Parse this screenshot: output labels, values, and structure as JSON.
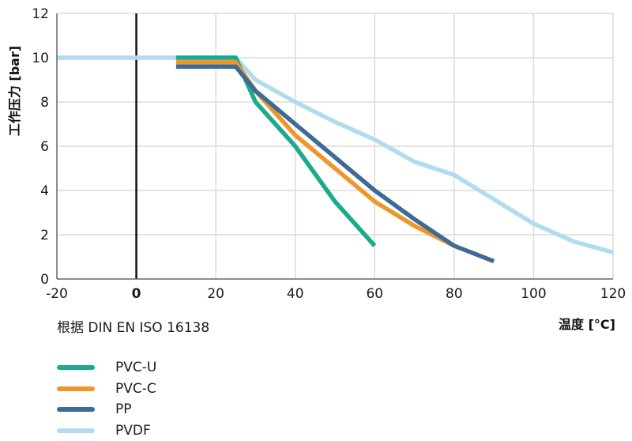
{
  "chart_data": {
    "type": "line",
    "xlabel": "温度 [°C]",
    "ylabel": "工作压力 [bar]",
    "xlim": [
      -20,
      120
    ],
    "ylim": [
      0,
      12
    ],
    "xticks": [
      -20,
      0,
      20,
      40,
      60,
      80,
      100,
      120
    ],
    "yticks": [
      0,
      2,
      4,
      6,
      8,
      10,
      12
    ],
    "grid": true,
    "note": "根据 DIN EN ISO 16138",
    "legend_position": "bottom-left",
    "series": [
      {
        "name": "PVC-U",
        "color": "#1aaa8c",
        "x": [
          10,
          25,
          30,
          40,
          50,
          60
        ],
        "y": [
          10,
          10,
          8,
          6,
          3.5,
          1.5
        ]
      },
      {
        "name": "PVC-C",
        "color": "#f0952a",
        "x": [
          10,
          25,
          30,
          40,
          50,
          60,
          70,
          80
        ],
        "y": [
          9.8,
          9.8,
          8.5,
          6.5,
          5,
          3.5,
          2.4,
          1.5
        ]
      },
      {
        "name": "PP",
        "color": "#3d6b96",
        "x": [
          10,
          25,
          30,
          40,
          50,
          60,
          70,
          80,
          90
        ],
        "y": [
          9.6,
          9.6,
          8.5,
          7,
          5.5,
          4,
          2.7,
          1.5,
          0.8
        ]
      },
      {
        "name": "PVDF",
        "color": "#b2dcee",
        "x": [
          -20,
          25,
          30,
          40,
          50,
          60,
          70,
          80,
          90,
          100,
          110,
          120
        ],
        "y": [
          10,
          10,
          9,
          8,
          7.1,
          6.3,
          5.3,
          4.7,
          3.6,
          2.5,
          1.7,
          1.2
        ]
      }
    ]
  }
}
